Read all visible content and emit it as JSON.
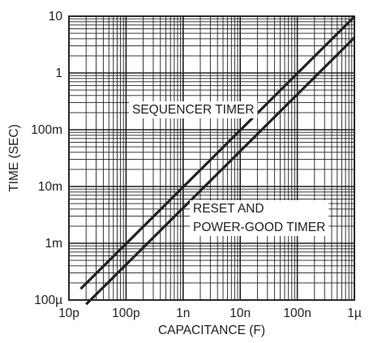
{
  "chart_data": {
    "type": "line",
    "xlabel": "CAPACITANCE (F)",
    "ylabel": "TIME (SEC)",
    "x_scale": "log",
    "y_scale": "log",
    "xlim": [
      1e-11,
      1e-06
    ],
    "ylim": [
      0.0001,
      10
    ],
    "grid": true,
    "x_ticks": [
      {
        "value": 1e-11,
        "label": "10p"
      },
      {
        "value": 1e-10,
        "label": "100p"
      },
      {
        "value": 1e-09,
        "label": "1n"
      },
      {
        "value": 1e-08,
        "label": "10n"
      },
      {
        "value": 1e-07,
        "label": "100n"
      },
      {
        "value": 1e-06,
        "label": "1µ"
      }
    ],
    "y_ticks": [
      {
        "value": 0.0001,
        "label": "100µ"
      },
      {
        "value": 0.001,
        "label": "1m"
      },
      {
        "value": 0.01,
        "label": "10m"
      },
      {
        "value": 0.1,
        "label": "100m"
      },
      {
        "value": 1,
        "label": "1"
      },
      {
        "value": 10,
        "label": "10"
      }
    ],
    "series": [
      {
        "name": "SEQUENCER TIMER",
        "x": [
          1.6e-11,
          1e-06
        ],
        "y": [
          0.000157,
          9.8
        ]
      },
      {
        "name": "RESET AND POWER-GOOD TIMER",
        "x": [
          2e-11,
          1e-06
        ],
        "y": [
          8.4e-05,
          4.2
        ]
      }
    ],
    "annotations": [
      {
        "text": "SEQUENCER TIMER",
        "series": 0
      },
      {
        "lines": [
          "RESET AND",
          "POWER-GOOD TIMER"
        ],
        "series": 1
      }
    ],
    "colors": {
      "line": "#231f20",
      "grid": "#231f20",
      "background": "#ffffff"
    }
  }
}
